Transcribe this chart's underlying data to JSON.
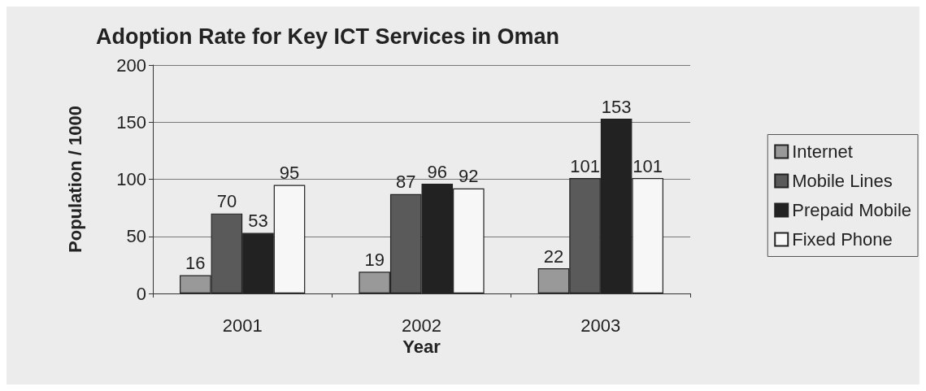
{
  "chart_data": {
    "type": "bar",
    "title": "Adoption Rate for Key ICT Services in Oman",
    "xlabel": "Year",
    "ylabel": "Population / 1000",
    "categories": [
      "2001",
      "2002",
      "2003"
    ],
    "series": [
      {
        "name": "Internet",
        "color": "#999999",
        "values": [
          16,
          19,
          22
        ]
      },
      {
        "name": "Mobile Lines",
        "color": "#5a5a5a",
        "values": [
          70,
          87,
          101
        ]
      },
      {
        "name": "Prepaid Mobile",
        "color": "#222222",
        "values": [
          53,
          96,
          153
        ]
      },
      {
        "name": "Fixed Phone",
        "color": "#f7f7f7",
        "values": [
          95,
          92,
          101
        ]
      }
    ],
    "ylim": [
      0,
      200
    ],
    "yticks": [
      0,
      50,
      100,
      150,
      200
    ],
    "grid": "y",
    "legend": "right",
    "data_labels": true
  }
}
